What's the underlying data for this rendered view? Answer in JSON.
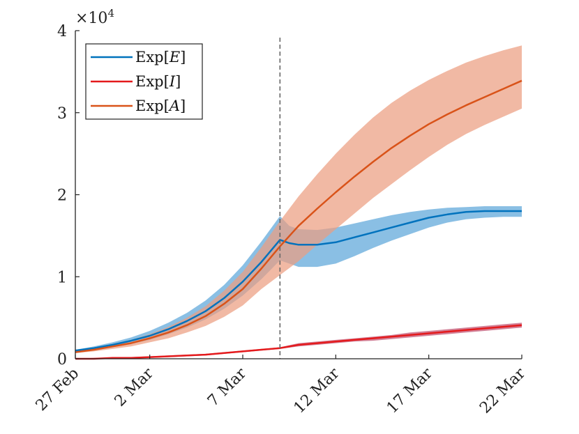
{
  "chart_data": {
    "type": "area",
    "title": "",
    "xlabel": "",
    "ylabel": "",
    "y_exponent_label": "×10",
    "y_exponent_power": "4",
    "xlim": [
      0,
      24
    ],
    "ylim": [
      0,
      4
    ],
    "x_ticks": [
      {
        "value": 0,
        "label": "27 Feb"
      },
      {
        "value": 4,
        "label": "2 Mar"
      },
      {
        "value": 9,
        "label": "7 Mar"
      },
      {
        "value": 14,
        "label": "12 Mar"
      },
      {
        "value": 19,
        "label": "17 Mar"
      },
      {
        "value": 24,
        "label": "22 Mar"
      }
    ],
    "y_ticks": [
      {
        "value": 0,
        "label": "0"
      },
      {
        "value": 1,
        "label": "1"
      },
      {
        "value": 2,
        "label": "2"
      },
      {
        "value": 3,
        "label": "3"
      },
      {
        "value": 4,
        "label": "4"
      }
    ],
    "vline_x": 11,
    "legend_position": "top-left",
    "series": [
      {
        "name": "Exp[E]",
        "legend_prefix": "Exp[",
        "legend_var": "E",
        "legend_suffix": "]",
        "color": "#0072BD",
        "band_color": "#5DA6D9",
        "x": [
          0,
          1,
          2,
          3,
          4,
          5,
          6,
          7,
          8,
          9,
          10,
          11,
          11.5,
          12,
          13,
          14,
          15,
          16,
          17,
          18,
          19,
          20,
          21,
          22,
          23,
          24
        ],
        "mean": [
          0.1,
          0.13,
          0.17,
          0.22,
          0.28,
          0.36,
          0.46,
          0.58,
          0.74,
          0.94,
          1.18,
          1.45,
          1.41,
          1.39,
          1.39,
          1.42,
          1.48,
          1.54,
          1.6,
          1.66,
          1.72,
          1.76,
          1.79,
          1.8,
          1.8,
          1.8
        ],
        "lower": [
          0.09,
          0.11,
          0.14,
          0.18,
          0.23,
          0.3,
          0.38,
          0.48,
          0.61,
          0.77,
          0.97,
          1.2,
          1.16,
          1.12,
          1.12,
          1.16,
          1.25,
          1.35,
          1.44,
          1.52,
          1.6,
          1.66,
          1.7,
          1.72,
          1.73,
          1.73
        ],
        "upper": [
          0.11,
          0.15,
          0.2,
          0.26,
          0.34,
          0.44,
          0.56,
          0.71,
          0.9,
          1.14,
          1.43,
          1.74,
          1.62,
          1.58,
          1.57,
          1.6,
          1.65,
          1.7,
          1.75,
          1.79,
          1.82,
          1.84,
          1.85,
          1.86,
          1.86,
          1.86
        ]
      },
      {
        "name": "Exp[I]",
        "legend_prefix": "Exp[",
        "legend_var": "I",
        "legend_suffix": "]",
        "color": "#E41A1C",
        "band_color": "#C14F6E",
        "x": [
          0,
          1,
          2,
          3,
          4,
          5,
          6,
          7,
          8,
          9,
          10,
          11,
          12,
          13,
          14,
          15,
          16,
          17,
          18,
          19,
          20,
          21,
          22,
          23,
          24
        ],
        "mean": [
          0.0,
          0.0,
          0.01,
          0.01,
          0.02,
          0.03,
          0.04,
          0.05,
          0.07,
          0.09,
          0.11,
          0.13,
          0.17,
          0.19,
          0.21,
          0.23,
          0.25,
          0.27,
          0.29,
          0.31,
          0.33,
          0.35,
          0.37,
          0.39,
          0.41
        ],
        "lower": [
          0.0,
          0.0,
          0.0,
          0.01,
          0.01,
          0.02,
          0.03,
          0.04,
          0.06,
          0.08,
          0.1,
          0.12,
          0.15,
          0.17,
          0.19,
          0.21,
          0.22,
          0.24,
          0.26,
          0.28,
          0.3,
          0.32,
          0.34,
          0.36,
          0.38
        ],
        "upper": [
          0.0,
          0.01,
          0.01,
          0.02,
          0.03,
          0.04,
          0.05,
          0.06,
          0.08,
          0.1,
          0.12,
          0.14,
          0.19,
          0.21,
          0.23,
          0.25,
          0.27,
          0.29,
          0.32,
          0.34,
          0.36,
          0.38,
          0.4,
          0.42,
          0.44
        ]
      },
      {
        "name": "Exp[A]",
        "legend_prefix": "Exp[",
        "legend_var": "A",
        "legend_suffix": "]",
        "color": "#D95319",
        "band_color": "#EB9E81",
        "x": [
          0,
          1,
          2,
          3,
          4,
          5,
          6,
          7,
          8,
          9,
          10,
          11,
          12,
          13,
          14,
          15,
          16,
          17,
          18,
          19,
          20,
          21,
          22,
          23,
          24
        ],
        "mean": [
          0.08,
          0.11,
          0.15,
          0.19,
          0.25,
          0.32,
          0.41,
          0.52,
          0.67,
          0.85,
          1.1,
          1.37,
          1.62,
          1.83,
          2.03,
          2.22,
          2.4,
          2.57,
          2.72,
          2.86,
          2.98,
          3.09,
          3.19,
          3.29,
          3.39
        ],
        "lower": [
          0.07,
          0.09,
          0.12,
          0.15,
          0.2,
          0.25,
          0.32,
          0.4,
          0.51,
          0.65,
          0.85,
          1.02,
          1.19,
          1.39,
          1.58,
          1.77,
          1.96,
          2.13,
          2.3,
          2.46,
          2.61,
          2.74,
          2.85,
          2.95,
          3.05
        ],
        "upper": [
          0.09,
          0.13,
          0.18,
          0.23,
          0.3,
          0.39,
          0.5,
          0.64,
          0.83,
          1.06,
          1.36,
          1.68,
          1.98,
          2.25,
          2.5,
          2.73,
          2.94,
          3.12,
          3.27,
          3.4,
          3.51,
          3.61,
          3.69,
          3.76,
          3.82
        ]
      }
    ]
  }
}
